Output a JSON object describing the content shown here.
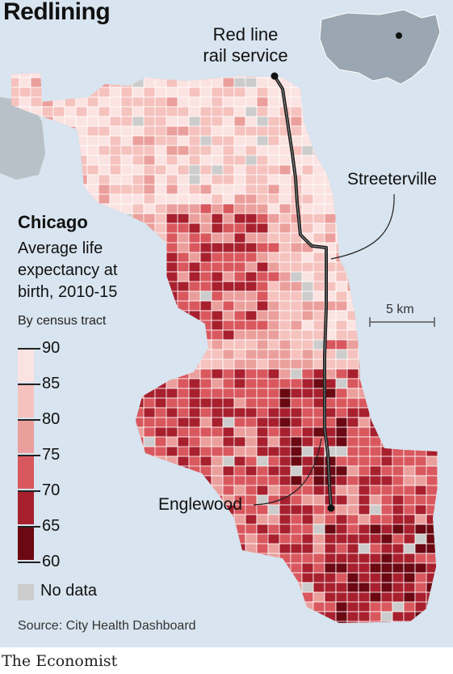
{
  "title": "Redlining",
  "map": {
    "rail_label_line1": "Red line",
    "rail_label_line2": "rail service",
    "label_streeterville": "Streeterville",
    "label_englewood": "Englewood",
    "scale_label": "5 km"
  },
  "legend": {
    "city": "Chicago",
    "subtitle": "Average life expectancy at birth, 2010-15",
    "by_tract": "By census tract",
    "ticks": [
      "90",
      "85",
      "80",
      "75",
      "70",
      "65",
      "60"
    ],
    "bins": [
      {
        "range": "85-90",
        "color": "#fbe3e1"
      },
      {
        "range": "80-85",
        "color": "#f5c2be"
      },
      {
        "range": "75-80",
        "color": "#eb9f9c"
      },
      {
        "range": "70-75",
        "color": "#d9585e"
      },
      {
        "range": "65-70",
        "color": "#a8202e"
      },
      {
        "range": "60-65",
        "color": "#6b0812"
      }
    ],
    "no_data_label": "No data",
    "no_data_color": "#cccccc"
  },
  "source": "Source: City Health Dashboard",
  "brand": "The Economist"
}
